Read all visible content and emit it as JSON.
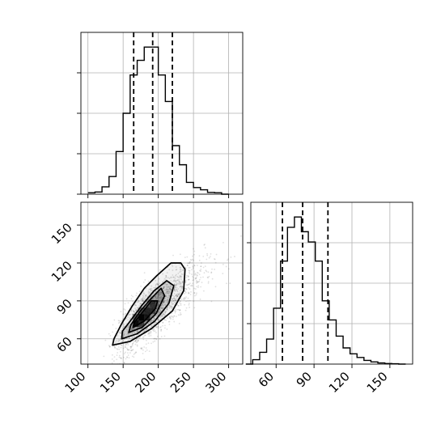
{
  "chart_data": {
    "type": "corner",
    "grid": true,
    "colors": {
      "line": "#000000",
      "grid": "#b0b0b0",
      "scatter": "#000000",
      "contour_fill": "#000000"
    },
    "panels": [
      {
        "id": "hist_x",
        "type": "histogram",
        "xlim": [
          90,
          320
        ],
        "x_ticks": [
          100,
          150,
          200,
          250,
          300
        ],
        "y_tick_fractions": [
          0.0,
          0.25,
          0.5,
          0.75
        ],
        "bin_edges": [
          100,
          110,
          120,
          130,
          140,
          150,
          160,
          170,
          180,
          190,
          200,
          210,
          220,
          230,
          240,
          250,
          260,
          270,
          280,
          290,
          300
        ],
        "counts": [
          0.01,
          0.015,
          0.05,
          0.12,
          0.29,
          0.55,
          0.81,
          0.91,
          1.0,
          1.0,
          0.81,
          0.63,
          0.33,
          0.2,
          0.08,
          0.045,
          0.03,
          0.012,
          0.01,
          0.0
        ],
        "quantile_lines": [
          165,
          192,
          220
        ]
      },
      {
        "id": "scatter_xy",
        "type": "scatter_contour",
        "xlim": [
          90,
          320
        ],
        "ylim": [
          40,
          168
        ],
        "x_ticks": [
          100,
          150,
          200,
          250,
          300
        ],
        "y_ticks": [
          60,
          90,
          120,
          150
        ],
        "x_tick_labels": [
          "100",
          "150",
          "200",
          "250",
          "300"
        ],
        "y_tick_labels": [
          "60",
          "90",
          "120",
          "150"
        ],
        "mean": [
          193,
          83
        ],
        "std": [
          30,
          17
        ],
        "correlation": 0.78,
        "contour_levels": [
          [
            [
              135,
              55
            ],
            [
              160,
              58
            ],
            [
              190,
              68
            ],
            [
              220,
              82
            ],
            [
              236,
              98
            ],
            [
              238,
              115
            ],
            [
              232,
              120
            ],
            [
              218,
              120
            ],
            [
              198,
              110
            ],
            [
              180,
              100
            ],
            [
              163,
              86
            ],
            [
              148,
              72
            ],
            [
              137,
              60
            ]
          ],
          [
            [
              148,
              60
            ],
            [
              170,
              64
            ],
            [
              195,
              74
            ],
            [
              215,
              88
            ],
            [
              222,
              102
            ],
            [
              212,
              106
            ],
            [
              194,
              98
            ],
            [
              176,
              86
            ],
            [
              160,
              74
            ],
            [
              149,
              66
            ]
          ],
          [
            [
              158,
              65
            ],
            [
              177,
              69
            ],
            [
              197,
              80
            ],
            [
              209,
              94
            ],
            [
              204,
              100
            ],
            [
              190,
              92
            ],
            [
              173,
              81
            ],
            [
              161,
              71
            ]
          ],
          [
            [
              164,
              69
            ],
            [
              180,
              74
            ],
            [
              196,
              84
            ],
            [
              199,
              90
            ],
            [
              190,
              90
            ],
            [
              176,
              80
            ],
            [
              166,
              73
            ]
          ]
        ]
      },
      {
        "id": "hist_y",
        "type": "histogram",
        "xlim": [
          40,
          168
        ],
        "x_ticks": [
          60,
          90,
          120,
          150
        ],
        "x_tick_labels": [
          "60",
          "90",
          "120",
          "150"
        ],
        "y_tick_fractions": [
          0.0,
          0.25,
          0.5,
          0.75
        ],
        "bin_edges": [
          36,
          41.5,
          47,
          52.5,
          58,
          63.5,
          69,
          74.5,
          80,
          85.5,
          91,
          96.5,
          102,
          107.5,
          113,
          118.5,
          124,
          129.5,
          135,
          140.5,
          146,
          151.5,
          157,
          162.5
        ],
        "counts": [
          0.0,
          0.03,
          0.08,
          0.17,
          0.38,
          0.7,
          0.93,
          1.0,
          0.9,
          0.83,
          0.7,
          0.43,
          0.3,
          0.19,
          0.11,
          0.07,
          0.045,
          0.025,
          0.015,
          0.008,
          0.004,
          0.002,
          0.0
        ],
        "quantile_lines": [
          65,
          81,
          101
        ]
      }
    ]
  }
}
